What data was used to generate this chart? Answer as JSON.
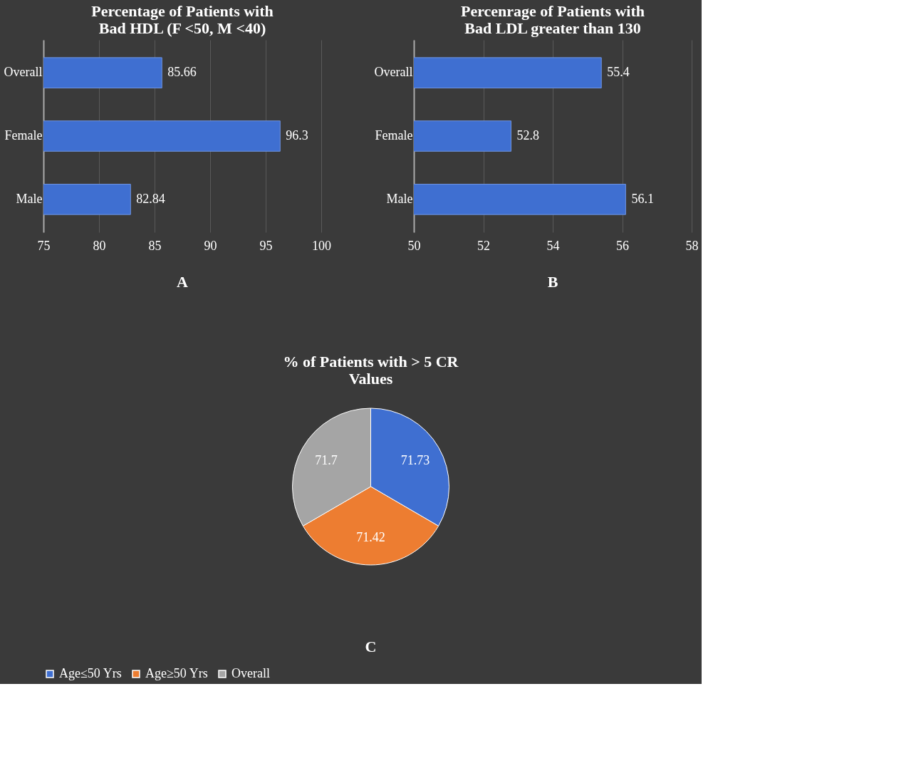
{
  "chart_data": [
    {
      "type": "bar",
      "orientation": "horizontal",
      "title": "Percentage of Patients with Bad HDL (F <50, M <40)",
      "categories": [
        "Overall",
        "Female",
        "Male"
      ],
      "values": [
        85.66,
        96.3,
        82.84
      ],
      "color": "#3f6fd1",
      "xlim": [
        75,
        100
      ],
      "xticks": [
        75,
        80,
        85,
        90,
        95,
        100
      ],
      "grid": "x",
      "data_labels": true,
      "annotations": [
        "A"
      ]
    },
    {
      "type": "bar",
      "orientation": "horizontal",
      "title": "Percenrage of Patients with Bad LDL greater than 130",
      "categories": [
        "Overall",
        "Female",
        "Male"
      ],
      "values": [
        55.4,
        52.8,
        56.1
      ],
      "color": "#3f6fd1",
      "xlim": [
        50,
        58
      ],
      "xticks": [
        50,
        52,
        54,
        56,
        58
      ],
      "grid": "x",
      "data_labels": true,
      "annotations": [
        "B"
      ]
    },
    {
      "type": "pie",
      "title": "% of Patients with > 5 CR Values",
      "categories": [
        "Age≤50 Yrs",
        "Age≥50 Yrs",
        "Overall"
      ],
      "values": [
        71.73,
        71.42,
        71.7
      ],
      "colors": [
        "#3f6fd1",
        "#ed7d31",
        "#a5a5a5"
      ],
      "data_labels": true,
      "legend": "bottom",
      "annotations": [
        "C"
      ]
    }
  ]
}
